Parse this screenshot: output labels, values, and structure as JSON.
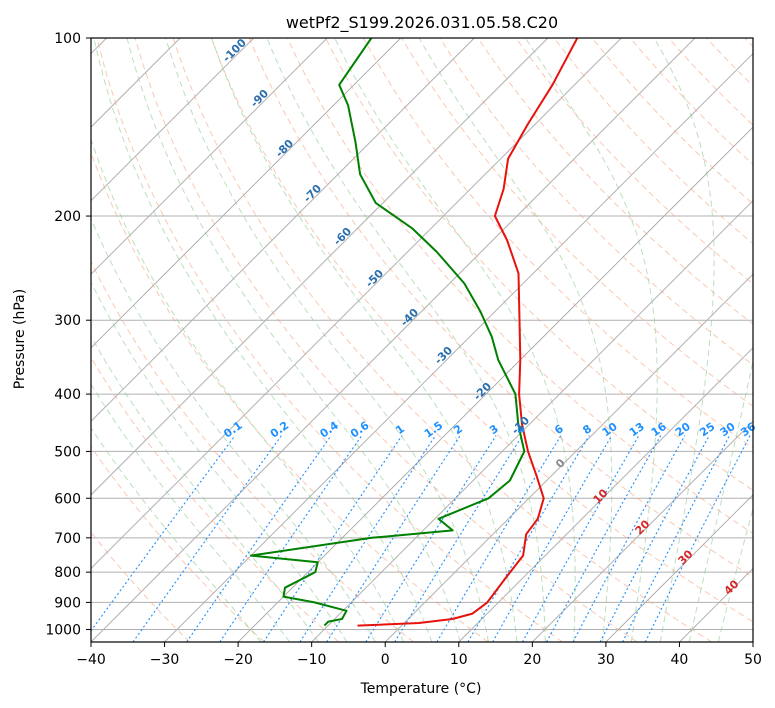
{
  "chart_data": {
    "type": "line",
    "title": "wetPf2_S199.2026.031.05.58.C20",
    "xlabel": "Temperature (°C)",
    "ylabel": "Pressure (hPa)",
    "xlim": [
      -40,
      50
    ],
    "ylim": [
      1050,
      100
    ],
    "y_scale": "log",
    "x_ticks": [
      "−40",
      "−30",
      "−20",
      "−10",
      "0",
      "10",
      "20",
      "30",
      "40",
      "50"
    ],
    "y_ticks": [
      "100",
      "200",
      "300",
      "400",
      "500",
      "600",
      "700",
      "800",
      "900",
      "1000"
    ],
    "grid": true,
    "skew": true,
    "series": [
      {
        "color": "#e8120c",
        "points": [
          [
            -6,
            985
          ],
          [
            2,
            975
          ],
          [
            6,
            960
          ],
          [
            8,
            940
          ],
          [
            8.5,
            900
          ],
          [
            8,
            850
          ],
          [
            7.5,
            800
          ],
          [
            7,
            750
          ],
          [
            4.5,
            690
          ],
          [
            4,
            650
          ],
          [
            2,
            600
          ],
          [
            -2,
            550
          ],
          [
            -6.5,
            500
          ],
          [
            -11,
            450
          ],
          [
            -15.5,
            400
          ],
          [
            -20,
            350
          ],
          [
            -25.5,
            300
          ],
          [
            -32,
            250
          ],
          [
            -38,
            220
          ],
          [
            -43,
            200
          ],
          [
            -45.5,
            180
          ],
          [
            -49,
            160
          ],
          [
            -51,
            140
          ],
          [
            -53,
            120
          ],
          [
            -56,
            100
          ]
        ]
      },
      {
        "color": "#008000",
        "points": [
          [
            -10.5,
            985
          ],
          [
            -10.5,
            970
          ],
          [
            -9,
            960
          ],
          [
            -9.5,
            930
          ],
          [
            -15,
            900
          ],
          [
            -20,
            880
          ],
          [
            -21,
            850
          ],
          [
            -19,
            800
          ],
          [
            -20,
            770
          ],
          [
            -30,
            750
          ],
          [
            -16,
            700
          ],
          [
            -6,
            680
          ],
          [
            -9.5,
            650
          ],
          [
            -5.5,
            600
          ],
          [
            -5,
            560
          ],
          [
            -7,
            500
          ],
          [
            -11.5,
            450
          ],
          [
            -16,
            400
          ],
          [
            -23,
            350
          ],
          [
            -27,
            320
          ],
          [
            -32,
            290
          ],
          [
            -38,
            260
          ],
          [
            -46,
            230
          ],
          [
            -52.5,
            210
          ],
          [
            -61,
            190
          ],
          [
            -67,
            170
          ],
          [
            -72,
            150
          ],
          [
            -78,
            130
          ],
          [
            -82,
            120
          ],
          [
            -84,
            100
          ]
        ]
      }
    ],
    "dry_adiabat_labels": [
      "-100",
      "-90",
      "-80",
      "-70",
      "-60",
      "-50",
      "-40",
      "-30",
      "-20",
      "-10"
    ],
    "mixing_ratio_labels": [
      "0.1",
      "0.2",
      "0.4",
      "0.6",
      "1",
      "1.5",
      "2",
      "3",
      "4",
      "6",
      "8",
      "10",
      "13",
      "16",
      "20",
      "25",
      "30",
      "36"
    ],
    "moist_adiabat_labels": [
      "0",
      "10",
      "20",
      "30",
      "40"
    ],
    "colors": {
      "temperature": "#e8120c",
      "dewpoint": "#008000",
      "dry_label": "#2b6fae",
      "mixing_label": "#1e90ff",
      "moist_label": "#d62728",
      "zero_label": "#888888"
    }
  }
}
